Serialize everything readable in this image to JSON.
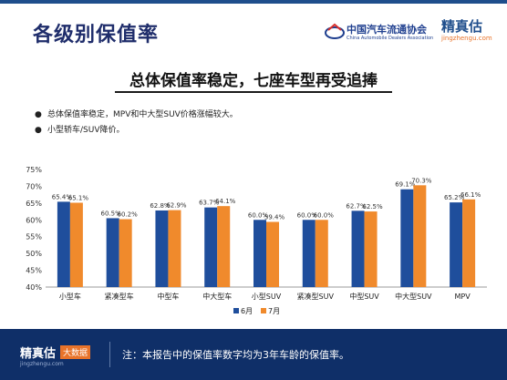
{
  "header": {
    "title": "各级别保值率",
    "cada_logo_cn": "中国汽车流通协会",
    "cada_logo_en": "China Automobile Dealers Association",
    "jzg_logo_cn": "精真估",
    "jzg_logo_en": "jingzhengu.com"
  },
  "subtitle": "总体保值率稳定，七座车型再受追捧",
  "bullets": [
    "总体保值率稳定，MPV和中大型SUV价格涨幅较大。",
    "小型轿车/SUV降价。"
  ],
  "chart_data": {
    "type": "bar",
    "categories": [
      "小型车",
      "紧凑型车",
      "中型车",
      "中大型车",
      "小型SUV",
      "紧凑型SUV",
      "中型SUV",
      "中大型SUV",
      "MPV"
    ],
    "series": [
      {
        "name": "6月",
        "values": [
          65.4,
          60.5,
          62.8,
          63.7,
          60.0,
          60.0,
          62.7,
          69.1,
          65.2
        ],
        "labels": [
          "65.4%",
          "60.5%",
          "62.8%",
          "63.7%",
          "60.0%",
          "60.0%",
          "62.7%",
          "69.1%",
          "65.2%"
        ]
      },
      {
        "name": "7月",
        "values": [
          65.1,
          60.2,
          62.9,
          64.1,
          59.4,
          60.0,
          62.5,
          70.3,
          66.1
        ],
        "labels": [
          "65.1%",
          "60.2%",
          "62.9%",
          "64.1%",
          "59.4%",
          "60.0%",
          "62.5%",
          "70.3%",
          "66.1%"
        ]
      }
    ],
    "ylim": [
      40,
      75
    ],
    "yticks": [
      "40%",
      "45%",
      "50%",
      "55%",
      "60%",
      "65%",
      "70%",
      "75%"
    ],
    "ytick_values": [
      40,
      45,
      50,
      55,
      60,
      65,
      70,
      75
    ],
    "grid": false,
    "legend_position": "bottom-center",
    "colors": [
      "#1f4e9c",
      "#f08a2c"
    ]
  },
  "footer": {
    "logo_cn": "精真估",
    "logo_badge": "大数据",
    "logo_en": "jingzhengu.com",
    "note": "注：本报告中的保值率数字均为3年车龄的保值率。"
  }
}
